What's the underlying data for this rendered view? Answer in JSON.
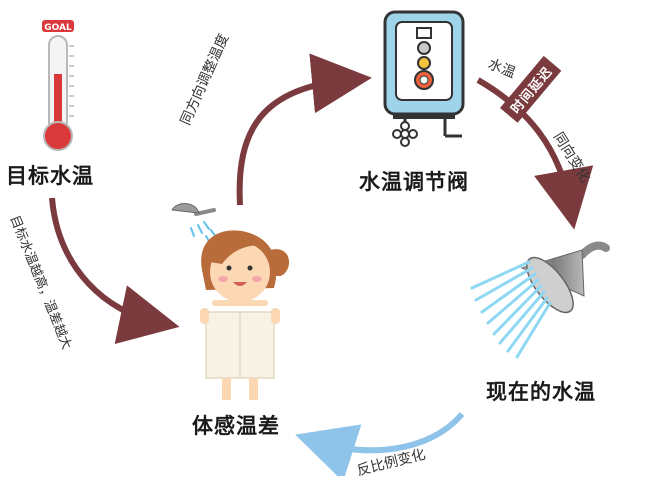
{
  "nodes": {
    "target_temp": "目标水温",
    "valve": "水温调节阀",
    "current_temp": "现在的水温",
    "body_feel": "体感温差"
  },
  "edges": {
    "body_to_valve": "同方向调整温度",
    "valve_to_current_a": "水温",
    "valve_to_current_b": "同向变化",
    "delay_badge": "时间延迟",
    "current_to_body": "反比例变化",
    "target_to_body": "目标水温越高，温差越大"
  },
  "thermometer": {
    "goal_text": "GOAL"
  },
  "colors": {
    "arrow_dark": "#7a3a3e",
    "arrow_blue": "#5aa6e0",
    "thermo_red": "#d9393a",
    "heater_blue": "#9fd3ea",
    "water": "#8fd8f4"
  }
}
